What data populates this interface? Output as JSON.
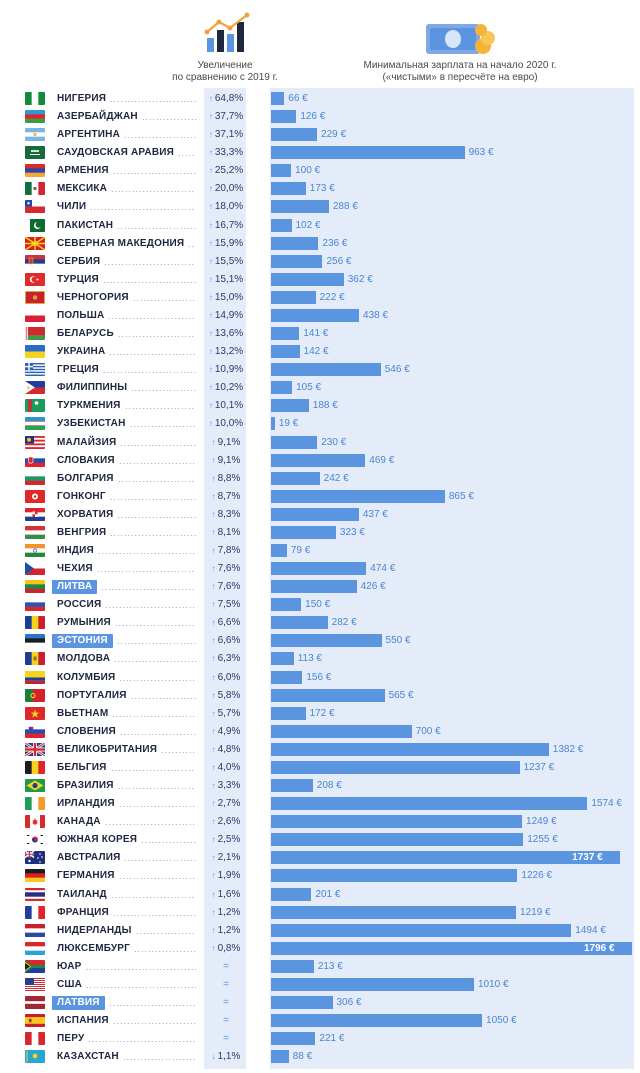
{
  "header": {
    "increase_line1": "Увеличение",
    "increase_line2": "по сравнению с 2019 г.",
    "wage_line1": "Минимальная зарплата на начало 2020 г.",
    "wage_line2": "(«чистыми» в пересчёте на евро)"
  },
  "colors": {
    "bar": "#5b95e0",
    "stripe": "#e3ecf8",
    "highlight": "#5b95e0",
    "text": "#1e2640"
  },
  "icons": {
    "increase": "growth-chart-icon",
    "wage": "money-banknote-coins-icon"
  },
  "chart_data": {
    "type": "bar",
    "orientation": "horizontal",
    "series": [
      {
        "name": "Минимальная зарплата на начало 2020 г.",
        "unit": "€"
      },
      {
        "name": "Увеличение по сравнению с 2019 г.",
        "unit": "%"
      }
    ],
    "rows": [
      {
        "country": "НИГЕРИЯ",
        "change": "64,8%",
        "dir": "up",
        "wage": 66,
        "flag": "nigeria"
      },
      {
        "country": "АЗЕРБАЙДЖАН",
        "change": "37,7%",
        "dir": "up",
        "wage": 126,
        "flag": "azerbaijan"
      },
      {
        "country": "АРГЕНТИНА",
        "change": "37,1%",
        "dir": "up",
        "wage": 229,
        "flag": "argentina"
      },
      {
        "country": "САУДОВСКАЯ АРАВИЯ",
        "change": "33,3%",
        "dir": "up",
        "wage": 963,
        "flag": "saudi-arabia"
      },
      {
        "country": "АРМЕНИЯ",
        "change": "25,2%",
        "dir": "up",
        "wage": 100,
        "flag": "armenia"
      },
      {
        "country": "МЕКСИКА",
        "change": "20,0%",
        "dir": "up",
        "wage": 173,
        "flag": "mexico"
      },
      {
        "country": "ЧИЛИ",
        "change": "18,0%",
        "dir": "up",
        "wage": 288,
        "flag": "chile"
      },
      {
        "country": "ПАКИСТАН",
        "change": "16,7%",
        "dir": "up",
        "wage": 102,
        "flag": "pakistan"
      },
      {
        "country": "СЕВЕРНАЯ МАКЕДОНИЯ",
        "change": "15,9%",
        "dir": "up",
        "wage": 236,
        "flag": "north-macedonia"
      },
      {
        "country": "СЕРБИЯ",
        "change": "15,5%",
        "dir": "up",
        "wage": 256,
        "flag": "serbia"
      },
      {
        "country": "ТУРЦИЯ",
        "change": "15,1%",
        "dir": "up",
        "wage": 362,
        "flag": "turkey"
      },
      {
        "country": "ЧЕРНОГОРИЯ",
        "change": "15,0%",
        "dir": "up",
        "wage": 222,
        "flag": "montenegro"
      },
      {
        "country": "ПОЛЬША",
        "change": "14,9%",
        "dir": "up",
        "wage": 438,
        "flag": "poland"
      },
      {
        "country": "БЕЛАРУСЬ",
        "change": "13,6%",
        "dir": "up",
        "wage": 141,
        "flag": "belarus"
      },
      {
        "country": "УКРАИНА",
        "change": "13,2%",
        "dir": "up",
        "wage": 142,
        "flag": "ukraine"
      },
      {
        "country": "ГРЕЦИЯ",
        "change": "10,9%",
        "dir": "up",
        "wage": 546,
        "flag": "greece"
      },
      {
        "country": "ФИЛИППИНЫ",
        "change": "10,2%",
        "dir": "up",
        "wage": 105,
        "flag": "philippines"
      },
      {
        "country": "ТУРКМЕНИЯ",
        "change": "10,1%",
        "dir": "up",
        "wage": 188,
        "flag": "turkmenistan"
      },
      {
        "country": "УЗБЕКИСТАН",
        "change": "10,0%",
        "dir": "up",
        "wage": 19,
        "flag": "uzbekistan"
      },
      {
        "country": "МАЛАЙЗИЯ",
        "change": "9,1%",
        "dir": "up",
        "wage": 230,
        "flag": "malaysia"
      },
      {
        "country": "СЛОВАКИЯ",
        "change": "9,1%",
        "dir": "up",
        "wage": 469,
        "flag": "slovakia"
      },
      {
        "country": "БОЛГАРИЯ",
        "change": "8,8%",
        "dir": "up",
        "wage": 242,
        "flag": "bulgaria"
      },
      {
        "country": "ГОНКОНГ",
        "change": "8,7%",
        "dir": "up",
        "wage": 865,
        "flag": "hong-kong"
      },
      {
        "country": "ХОРВАТИЯ",
        "change": "8,3%",
        "dir": "up",
        "wage": 437,
        "flag": "croatia"
      },
      {
        "country": "ВЕНГРИЯ",
        "change": "8,1%",
        "dir": "up",
        "wage": 323,
        "flag": "hungary"
      },
      {
        "country": "ИНДИЯ",
        "change": "7,8%",
        "dir": "up",
        "wage": 79,
        "flag": "india"
      },
      {
        "country": "ЧЕХИЯ",
        "change": "7,6%",
        "dir": "up",
        "wage": 474,
        "flag": "czechia"
      },
      {
        "country": "ЛИТВА",
        "change": "7,6%",
        "dir": "up",
        "wage": 426,
        "flag": "lithuania",
        "highlight": true
      },
      {
        "country": "РОССИЯ",
        "change": "7,5%",
        "dir": "up",
        "wage": 150,
        "flag": "russia"
      },
      {
        "country": "РУМЫНИЯ",
        "change": "6,6%",
        "dir": "up",
        "wage": 282,
        "flag": "romania"
      },
      {
        "country": "ЭСТОНИЯ",
        "change": "6,6%",
        "dir": "up",
        "wage": 550,
        "flag": "estonia",
        "highlight": true
      },
      {
        "country": "МОЛДОВА",
        "change": "6,3%",
        "dir": "up",
        "wage": 113,
        "flag": "moldova"
      },
      {
        "country": "КОЛУМБИЯ",
        "change": "6,0%",
        "dir": "up",
        "wage": 156,
        "flag": "colombia"
      },
      {
        "country": "ПОРТУГАЛИЯ",
        "change": "5,8%",
        "dir": "up",
        "wage": 565,
        "flag": "portugal"
      },
      {
        "country": "ВЬЕТНАМ",
        "change": "5,7%",
        "dir": "up",
        "wage": 172,
        "flag": "vietnam"
      },
      {
        "country": "СЛОВЕНИЯ",
        "change": "4,9%",
        "dir": "up",
        "wage": 700,
        "flag": "slovenia"
      },
      {
        "country": "ВЕЛИКОБРИТАНИЯ",
        "change": "4,8%",
        "dir": "up",
        "wage": 1382,
        "flag": "uk"
      },
      {
        "country": "БЕЛЬГИЯ",
        "change": "4,0%",
        "dir": "up",
        "wage": 1237,
        "flag": "belgium"
      },
      {
        "country": "БРАЗИЛИЯ",
        "change": "3,3%",
        "dir": "up",
        "wage": 208,
        "flag": "brazil"
      },
      {
        "country": "ИРЛАНДИЯ",
        "change": "2,7%",
        "dir": "up",
        "wage": 1574,
        "flag": "ireland"
      },
      {
        "country": "КАНАДА",
        "change": "2,6%",
        "dir": "up",
        "wage": 1249,
        "flag": "canada"
      },
      {
        "country": "ЮЖНАЯ КОРЕЯ",
        "change": "2,5%",
        "dir": "up",
        "wage": 1255,
        "flag": "south-korea"
      },
      {
        "country": "АВСТРАЛИЯ",
        "change": "2,1%",
        "dir": "up",
        "wage": 1737,
        "flag": "australia"
      },
      {
        "country": "ГЕРМАНИЯ",
        "change": "1,9%",
        "dir": "up",
        "wage": 1226,
        "flag": "germany"
      },
      {
        "country": "ТАИЛАНД",
        "change": "1,6%",
        "dir": "up",
        "wage": 201,
        "flag": "thailand"
      },
      {
        "country": "ФРАНЦИЯ",
        "change": "1,2%",
        "dir": "up",
        "wage": 1219,
        "flag": "france"
      },
      {
        "country": "НИДЕРЛАНДЫ",
        "change": "1,2%",
        "dir": "up",
        "wage": 1494,
        "flag": "netherlands"
      },
      {
        "country": "ЛЮКСЕМБУРГ",
        "change": "0,8%",
        "dir": "up",
        "wage": 1796,
        "flag": "luxembourg"
      },
      {
        "country": "ЮАР",
        "change": "=",
        "dir": "same",
        "wage": 213,
        "flag": "south-africa"
      },
      {
        "country": "США",
        "change": "=",
        "dir": "same",
        "wage": 1010,
        "flag": "usa"
      },
      {
        "country": "ЛАТВИЯ",
        "change": "=",
        "dir": "same",
        "wage": 306,
        "flag": "latvia",
        "highlight": true
      },
      {
        "country": "ИСПАНИЯ",
        "change": "=",
        "dir": "same",
        "wage": 1050,
        "flag": "spain"
      },
      {
        "country": "ПЕРУ",
        "change": "=",
        "dir": "same",
        "wage": 221,
        "flag": "peru"
      },
      {
        "country": "КАЗАХСТАН",
        "change": "1,1%",
        "dir": "down",
        "wage": 88,
        "flag": "kazakhstan"
      }
    ],
    "wage_unit_label": "€",
    "xlim": [
      0,
      1796
    ]
  }
}
